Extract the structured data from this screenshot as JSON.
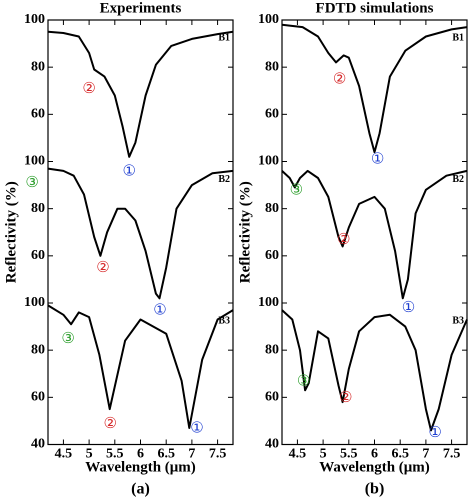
{
  "chart_data": [
    {
      "type": "line",
      "title": "Experiments",
      "xlabel": "Wavelength (μm)",
      "ylabel": "Reflectivity (%)",
      "caption": "(a)",
      "xlim": [
        4.2,
        7.8
      ],
      "xticks": [
        4.5,
        5,
        5.5,
        6,
        6.5,
        7,
        7.5
      ],
      "series": [
        {
          "name": "B1",
          "color": "#000000",
          "ylim": [
            40,
            100
          ],
          "yticks": [
            100,
            80,
            60
          ],
          "x": [
            4.2,
            4.5,
            4.8,
            5.0,
            5.1,
            5.3,
            5.5,
            5.65,
            5.78,
            5.9,
            6.1,
            6.3,
            6.6,
            7.0,
            7.5,
            7.8
          ],
          "values": [
            95,
            94.5,
            93,
            86,
            79,
            76,
            68,
            55,
            42,
            48,
            68,
            81,
            89,
            92,
            94,
            95
          ],
          "annotations": [
            {
              "text": "②",
              "x": 5.0,
              "y": 71,
              "color": "#d62728"
            },
            {
              "text": "①",
              "x": 5.78,
              "y": 36,
              "color": "#1f3fd0"
            }
          ]
        },
        {
          "name": "B2",
          "color": "#000000",
          "ylim": [
            40,
            100
          ],
          "yticks": [
            100,
            80,
            60
          ],
          "x": [
            4.2,
            4.5,
            4.7,
            4.9,
            5.1,
            5.22,
            5.35,
            5.55,
            5.7,
            5.9,
            6.1,
            6.3,
            6.37,
            6.5,
            6.7,
            7.0,
            7.4,
            7.8
          ],
          "values": [
            97,
            96,
            94,
            86,
            68,
            60,
            70,
            80,
            80,
            75,
            62,
            44,
            42,
            55,
            80,
            90,
            95,
            96
          ],
          "annotations": [
            {
              "text": "③",
              "x": 3.89,
              "y": 91,
              "color": "#2a9d2a"
            },
            {
              "text": "②",
              "x": 5.27,
              "y": 55,
              "color": "#d62728"
            },
            {
              "text": "①",
              "x": 6.38,
              "y": 37,
              "color": "#1f3fd0"
            }
          ]
        },
        {
          "name": "B3",
          "color": "#000000",
          "ylim": [
            40,
            100
          ],
          "yticks": [
            100,
            80,
            60,
            40
          ],
          "x": [
            4.2,
            4.5,
            4.65,
            4.8,
            5.0,
            5.2,
            5.4,
            5.7,
            6.0,
            6.5,
            6.8,
            6.95,
            7.2,
            7.5,
            7.8
          ],
          "values": [
            99,
            95,
            91,
            96,
            94,
            78,
            55,
            84,
            93,
            87,
            67,
            47,
            76,
            93,
            97
          ],
          "annotations": [
            {
              "text": "③",
              "x": 4.59,
              "y": 85,
              "color": "#2a9d2a"
            },
            {
              "text": "②",
              "x": 5.41,
              "y": 49,
              "color": "#d62728"
            },
            {
              "text": "①",
              "x": 7.1,
              "y": 47,
              "color": "#1f3fd0"
            }
          ]
        }
      ]
    },
    {
      "type": "line",
      "title": "FDTD simulations",
      "xlabel": "Wavelength (μm)",
      "ylabel": "Reflectivity (%)",
      "caption": "(b)",
      "xlim": [
        4.2,
        7.8
      ],
      "xticks": [
        4.5,
        5,
        5.5,
        6,
        6.5,
        7,
        7.5
      ],
      "series": [
        {
          "name": "B1",
          "color": "#000000",
          "ylim": [
            40,
            100
          ],
          "yticks": [
            100,
            80,
            60
          ],
          "x": [
            4.2,
            4.6,
            4.9,
            5.1,
            5.25,
            5.4,
            5.5,
            5.7,
            5.9,
            6.0,
            6.1,
            6.3,
            6.6,
            7.0,
            7.5,
            7.8
          ],
          "values": [
            98,
            97,
            93,
            86,
            82,
            85,
            84,
            72,
            52,
            44,
            52,
            76,
            87,
            93,
            96,
            97
          ],
          "annotations": [
            {
              "text": "②",
              "x": 5.32,
              "y": 75,
              "color": "#d62728"
            },
            {
              "text": "①",
              "x": 6.06,
              "y": 41,
              "color": "#1f3fd0"
            }
          ]
        },
        {
          "name": "B2",
          "color": "#000000",
          "ylim": [
            40,
            100
          ],
          "yticks": [
            100,
            80,
            60
          ],
          "x": [
            4.2,
            4.35,
            4.45,
            4.55,
            4.7,
            4.9,
            5.1,
            5.3,
            5.38,
            5.5,
            5.7,
            6.0,
            6.2,
            6.4,
            6.55,
            6.65,
            6.8,
            7.0,
            7.4,
            7.8
          ],
          "values": [
            96,
            93,
            89,
            93,
            96,
            93,
            85,
            68,
            64,
            72,
            82,
            85,
            80,
            62,
            42,
            50,
            78,
            88,
            94,
            96
          ],
          "annotations": [
            {
              "text": "③",
              "x": 4.48,
              "y": 88,
              "color": "#2a9d2a"
            },
            {
              "text": "②",
              "x": 5.4,
              "y": 67,
              "color": "#d62728"
            },
            {
              "text": "①",
              "x": 6.66,
              "y": 38,
              "color": "#1f3fd0"
            }
          ]
        },
        {
          "name": "B3",
          "color": "#000000",
          "ylim": [
            40,
            100
          ],
          "yticks": [
            100,
            80,
            60,
            40
          ],
          "x": [
            4.2,
            4.4,
            4.55,
            4.65,
            4.72,
            4.9,
            5.1,
            5.3,
            5.38,
            5.5,
            5.7,
            6.0,
            6.3,
            6.6,
            6.8,
            7.0,
            7.1,
            7.25,
            7.5,
            7.8
          ],
          "values": [
            97,
            93,
            80,
            63,
            66,
            88,
            85,
            65,
            58,
            72,
            88,
            94,
            95,
            90,
            80,
            55,
            46,
            55,
            78,
            93
          ],
          "annotations": [
            {
              "text": "③",
              "x": 4.62,
              "y": 67,
              "color": "#2a9d2a"
            },
            {
              "text": "②",
              "x": 5.44,
              "y": 60,
              "color": "#d62728"
            },
            {
              "text": "①",
              "x": 7.18,
              "y": 45,
              "color": "#1f3fd0"
            }
          ]
        }
      ]
    }
  ]
}
